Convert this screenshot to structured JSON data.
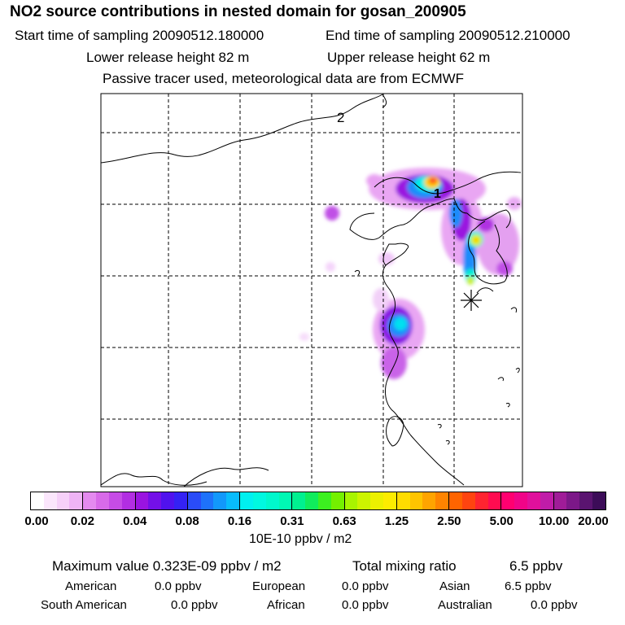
{
  "header": {
    "title": "NO2 source contributions in nested domain for gosan_200905",
    "start_label": "Start time of sampling 20090512.180000",
    "end_label": "End time of sampling 20090512.210000",
    "lower_label": "Lower release height   82 m",
    "upper_label": "Upper release height   62 m",
    "note": "Passive tracer used, meteorological data are from ECMWF"
  },
  "map": {
    "labels": [
      "2",
      "1"
    ],
    "receptor_marker": "asterisk-icon"
  },
  "colorbar": {
    "ticks": [
      "0.00",
      "0.02",
      "0.04",
      "0.08",
      "0.16",
      "0.31",
      "0.63",
      "1.25",
      "2.50",
      "5.00",
      "10.00",
      "20.00"
    ],
    "units": "10E-10 ppbv / m2",
    "colors": [
      [
        "#ffffff",
        "#fbe6fc",
        "#f6d0f9",
        "#efb4f5"
      ],
      [
        "#e48aef",
        "#d86ae9",
        "#c64ce6",
        "#b22ee2"
      ],
      [
        "#9a14e0",
        "#7410e8",
        "#5012ee",
        "#3422f4"
      ],
      [
        "#2a4cf8",
        "#1e72fa",
        "#1298fb",
        "#08bcfc"
      ],
      [
        "#00f0f0",
        "#00f8e0",
        "#00f8cc",
        "#00f8b4"
      ],
      [
        "#00f090",
        "#10ec5c",
        "#3cf020",
        "#74f000"
      ],
      [
        "#a8f400",
        "#ccf400",
        "#ecf000",
        "#fcec00"
      ],
      [
        "#ffdc00",
        "#ffc400",
        "#ffa400",
        "#ff8400"
      ],
      [
        "#ff6400",
        "#ff4410",
        "#ff2430",
        "#ff0c50"
      ],
      [
        "#ff0070",
        "#f00488",
        "#e0109c",
        "#c01ca8"
      ],
      [
        "#a01c98",
        "#7c1888",
        "#5a1470",
        "#3c0c58"
      ]
    ]
  },
  "summary": {
    "max_label": "Maximum value  0.323E-09 ppbv / m2",
    "total_label": "Total mixing ratio",
    "total_value": "6.5 ppbv",
    "regions": [
      {
        "name": "American",
        "value": "0.0 ppbv"
      },
      {
        "name": "European",
        "value": "0.0 ppbv"
      },
      {
        "name": "Asian",
        "value": "6.5 ppbv"
      },
      {
        "name": "South American",
        "value": "0.0 ppbv"
      },
      {
        "name": "African",
        "value": "0.0 ppbv"
      },
      {
        "name": "Australian",
        "value": "0.0 ppbv"
      }
    ]
  }
}
